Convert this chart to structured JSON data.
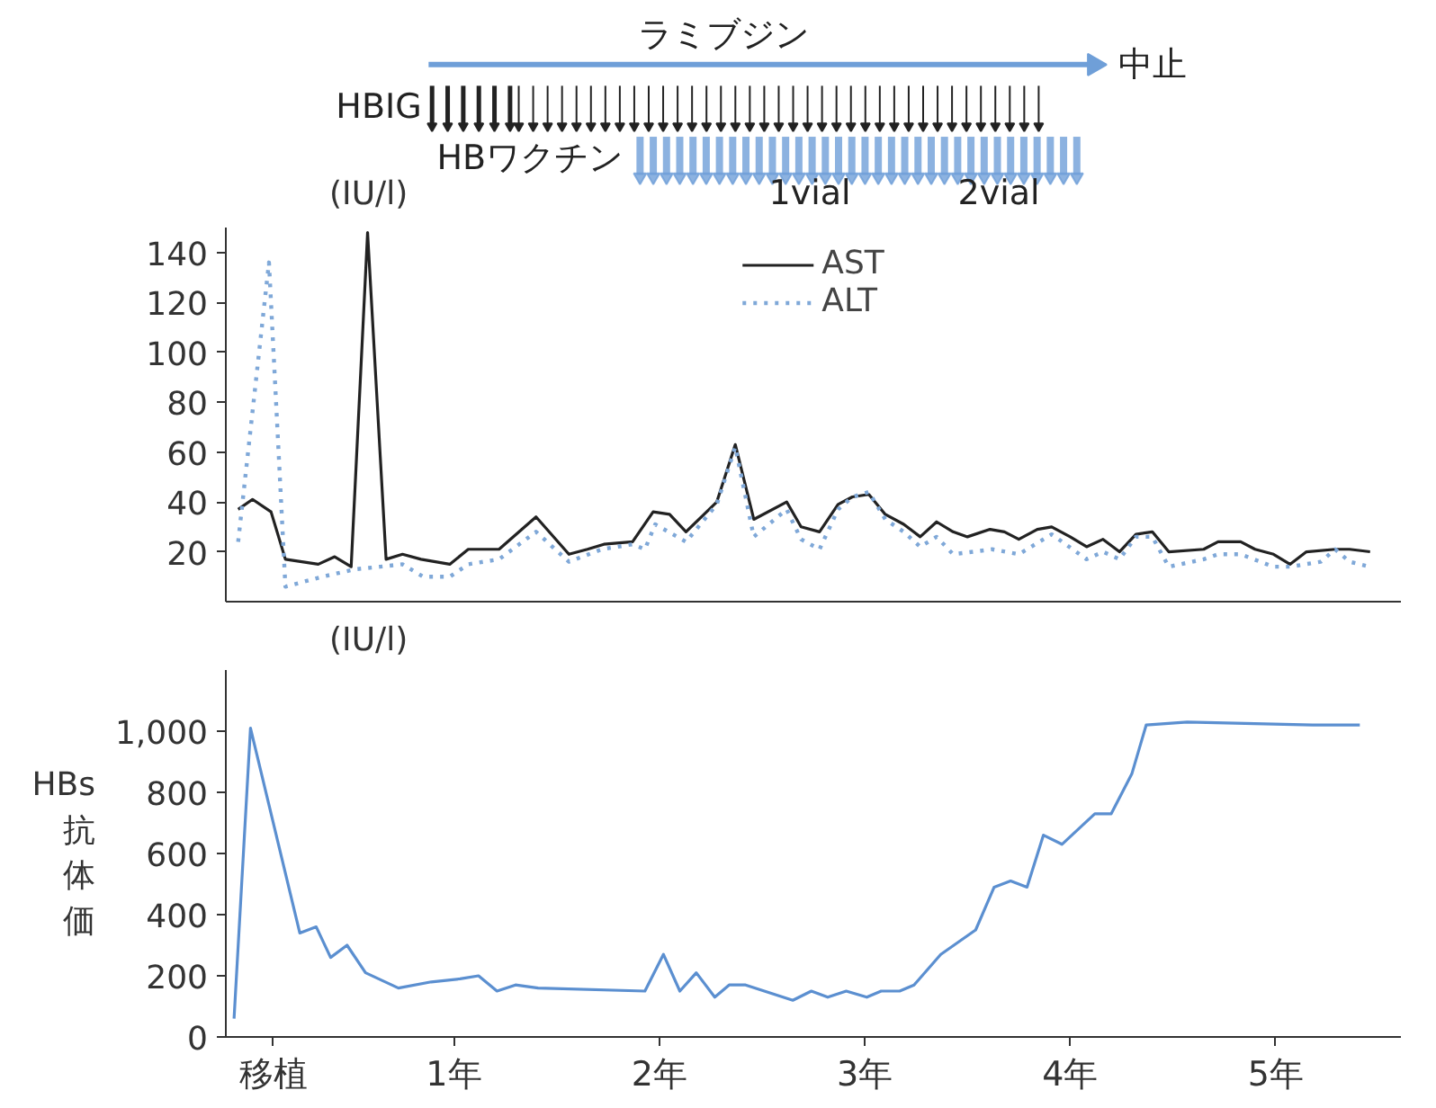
{
  "chart_data": [
    {
      "type": "line",
      "ylabel": "(IU/l)",
      "xlim": [
        -0.11,
        5.61
      ],
      "ylim": [
        0,
        150
      ],
      "yticks": [
        20,
        40,
        60,
        80,
        100,
        120,
        140
      ],
      "tick_labels": "y",
      "legend": "top",
      "grid": false,
      "annotations": [
        "ラミブジン",
        "中止",
        "HBIG",
        "HBワクチン",
        "1vial",
        "2vial"
      ],
      "series": [
        {
          "name": "AST",
          "color": "#222222",
          "line_style": "solid",
          "x": [
            -0.05,
            0.02,
            0.11,
            0.18,
            0.34,
            0.42,
            0.5,
            0.58,
            0.67,
            0.75,
            0.84,
            0.98,
            1.07,
            1.15,
            1.22,
            1.4,
            1.56,
            1.65,
            1.73,
            1.87,
            1.97,
            2.05,
            2.13,
            2.28,
            2.37,
            2.46,
            2.62,
            2.69,
            2.78,
            2.87,
            2.94,
            3.02,
            3.1,
            3.19,
            3.27,
            3.35,
            3.43,
            3.5,
            3.61,
            3.68,
            3.75,
            3.84,
            3.91,
            4.0,
            4.08,
            4.16,
            4.24,
            4.32,
            4.4,
            4.48,
            4.65,
            4.72,
            4.83,
            4.9,
            4.99,
            5.07,
            5.15,
            5.29,
            5.36,
            5.46
          ],
          "values": [
            37,
            41,
            36,
            17,
            15,
            18,
            14,
            148,
            17,
            19,
            17,
            15,
            21,
            21,
            21,
            34,
            19,
            21,
            23,
            24,
            36,
            35,
            28,
            40,
            63,
            33,
            40,
            30,
            28,
            39,
            42,
            43,
            35,
            31,
            26,
            32,
            28,
            26,
            29,
            28,
            25,
            29,
            30,
            26,
            22,
            25,
            20,
            27,
            28,
            20,
            21,
            24,
            24,
            21,
            19,
            15,
            20,
            21,
            21,
            20
          ]
        },
        {
          "name": "ALT",
          "color": "#7fa8d8",
          "line_style": "dotted",
          "x": [
            -0.05,
            0.1,
            0.18,
            0.36,
            0.52,
            0.64,
            0.75,
            0.85,
            0.98,
            1.07,
            1.22,
            1.4,
            1.56,
            1.72,
            1.87,
            1.93,
            1.98,
            2.13,
            2.28,
            2.37,
            2.46,
            2.62,
            2.69,
            2.78,
            2.87,
            2.94,
            3.02,
            3.1,
            3.19,
            3.27,
            3.35,
            3.43,
            3.62,
            3.75,
            3.91,
            4.08,
            4.16,
            4.24,
            4.32,
            4.4,
            4.48,
            4.65,
            4.72,
            4.83,
            4.99,
            5.07,
            5.22,
            5.29,
            5.36,
            5.46
          ],
          "values": [
            24,
            136,
            6,
            10,
            13,
            14,
            15,
            10,
            10,
            15,
            17,
            28,
            16,
            21,
            23,
            21,
            31,
            24,
            39,
            62,
            26,
            37,
            25,
            21,
            37,
            42,
            44,
            33,
            28,
            22,
            26,
            19,
            21,
            19,
            27,
            17,
            20,
            17,
            26,
            26,
            14,
            17,
            19,
            19,
            14,
            14,
            16,
            21,
            16,
            14
          ]
        }
      ]
    },
    {
      "type": "line",
      "ylabel": "HBs抗体価",
      "annotations": [
        "(IU/l)"
      ],
      "xlim": [
        -0.11,
        5.61
      ],
      "ylim": [
        0,
        1200
      ],
      "yticks": [
        0,
        200,
        400,
        600,
        800,
        {
          "value": 1000,
          "label": "1,000"
        }
      ],
      "xticks": [
        {
          "value": 0.12,
          "label": "移植"
        },
        {
          "value": 1,
          "label": "1年"
        },
        {
          "value": 2,
          "label": "2年"
        },
        {
          "value": 3,
          "label": "3年"
        },
        {
          "value": 4,
          "label": "4年"
        },
        {
          "value": 5,
          "label": "5年"
        }
      ],
      "grid": false,
      "series": [
        {
          "color": "#5b8fd0",
          "x": [
            -0.07,
            0.01,
            0.25,
            0.33,
            0.4,
            0.48,
            0.57,
            0.73,
            0.89,
            1.03,
            1.12,
            1.21,
            1.3,
            1.41,
            1.93,
            2.02,
            2.1,
            2.18,
            2.27,
            2.34,
            2.42,
            2.65,
            2.74,
            2.82,
            2.91,
            3.01,
            3.08,
            3.17,
            3.24,
            3.37,
            3.54,
            3.63,
            3.71,
            3.79,
            3.87,
            3.96,
            4.12,
            4.2,
            4.3,
            4.37,
            4.57,
            5.18,
            5.41
          ],
          "values": [
            60,
            1010,
            340,
            360,
            260,
            300,
            210,
            160,
            180,
            190,
            200,
            150,
            170,
            160,
            150,
            270,
            150,
            210,
            130,
            170,
            170,
            120,
            150,
            130,
            150,
            130,
            150,
            150,
            170,
            270,
            350,
            490,
            510,
            490,
            660,
            630,
            730,
            730,
            860,
            1020,
            1030,
            1020,
            1020
          ]
        }
      ]
    }
  ]
}
